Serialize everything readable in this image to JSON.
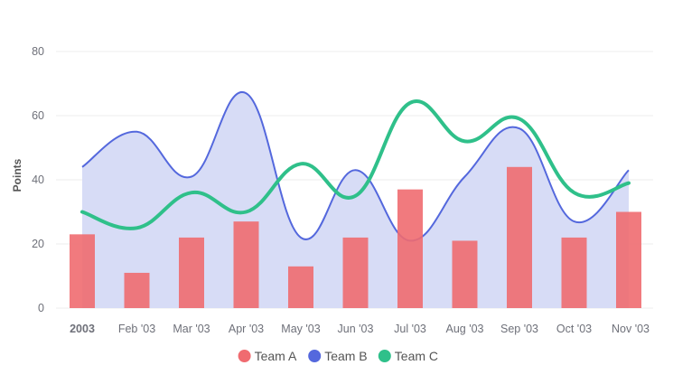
{
  "chart_data": {
    "type": "bar",
    "ylabel": "Points",
    "ylim": [
      0,
      80
    ],
    "yticks": [
      "0",
      "20",
      "40",
      "60",
      "80"
    ],
    "ytick_values": [
      0,
      20,
      40,
      60,
      80
    ],
    "categories": [
      "2003",
      "Feb '03",
      "Mar '03",
      "Apr '03",
      "May '03",
      "Jun '03",
      "Jul '03",
      "Aug '03",
      "Sep '03",
      "Oct '03",
      "Nov '03"
    ],
    "bold_categories": [
      "2003"
    ],
    "series": [
      {
        "name": "Team A",
        "type": "column",
        "color": "#f06b70",
        "values": [
          23,
          11,
          22,
          27,
          13,
          22,
          37,
          21,
          44,
          22,
          30
        ]
      },
      {
        "name": "Team B",
        "type": "area",
        "color": "#5468dd",
        "fill": "#d5daf6",
        "values": [
          44,
          55,
          41,
          67,
          22,
          43,
          21,
          41,
          56,
          27,
          43
        ]
      },
      {
        "name": "Team C",
        "type": "line",
        "color": "#2fc08a",
        "values": [
          30,
          25,
          36,
          30,
          45,
          35,
          64,
          52,
          59,
          36,
          39
        ]
      }
    ]
  }
}
